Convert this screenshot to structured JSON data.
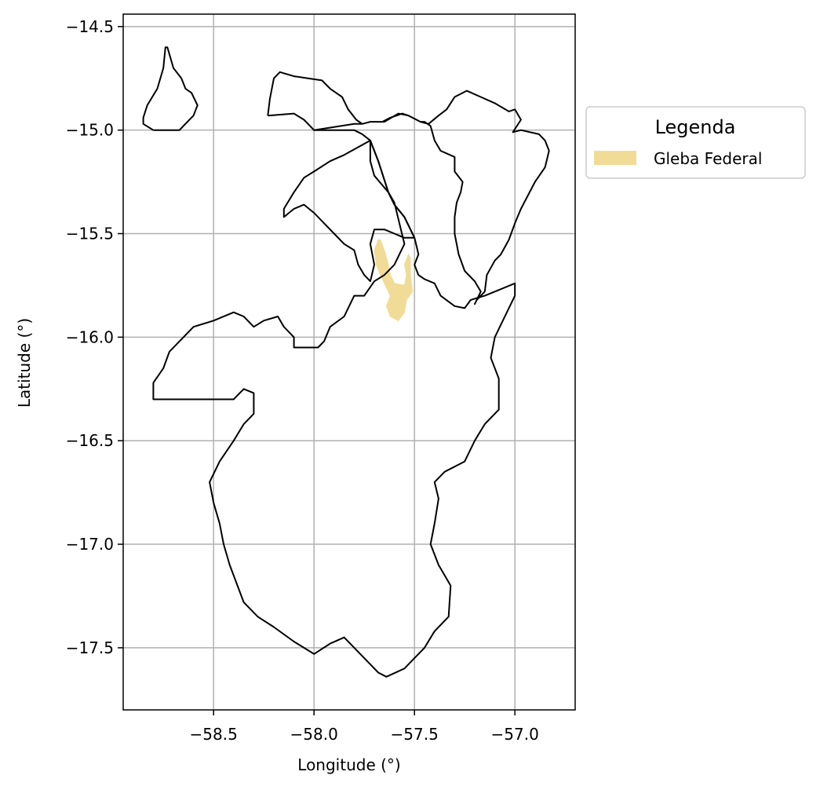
{
  "chart_data": {
    "type": "map",
    "xlabel": "Longitude (°)",
    "ylabel": "Latitude (°)",
    "xlim": [
      -58.95,
      -56.7
    ],
    "ylim": [
      -17.8,
      -14.44
    ],
    "grid": true,
    "x_ticks": [
      {
        "value": -58.5,
        "label": "−58.5"
      },
      {
        "value": -58.0,
        "label": "−58.0"
      },
      {
        "value": -57.5,
        "label": "−57.5"
      },
      {
        "value": -57.0,
        "label": "−57.0"
      }
    ],
    "y_ticks": [
      {
        "value": -14.5,
        "label": "−14.5"
      },
      {
        "value": -15.0,
        "label": "−15.0"
      },
      {
        "value": -15.5,
        "label": "−15.5"
      },
      {
        "value": -16.0,
        "label": "−16.0"
      },
      {
        "value": -16.5,
        "label": "−16.5"
      },
      {
        "value": -17.0,
        "label": "−17.0"
      },
      {
        "value": -17.5,
        "label": "−17.5"
      }
    ],
    "legend": {
      "title": "Legenda",
      "placement": "outside-right",
      "entries": [
        {
          "label": "Gleba Federal",
          "color": "#f0dc96"
        }
      ]
    },
    "boundary_color": "#000000",
    "boundaries": [
      [
        [
          -58.8,
          -15.0
        ],
        [
          -58.67,
          -15.0
        ],
        [
          -58.63,
          -14.96
        ],
        [
          -58.6,
          -14.93
        ],
        [
          -58.58,
          -14.88
        ],
        [
          -58.61,
          -14.82
        ],
        [
          -58.64,
          -14.8
        ],
        [
          -58.66,
          -14.75
        ],
        [
          -58.7,
          -14.7
        ],
        [
          -58.73,
          -14.6
        ],
        [
          -58.74,
          -14.6
        ],
        [
          -58.75,
          -14.7
        ],
        [
          -58.78,
          -14.8
        ],
        [
          -58.83,
          -14.88
        ],
        [
          -58.85,
          -14.94
        ],
        [
          -58.85,
          -14.97
        ],
        [
          -58.8,
          -15.0
        ]
      ],
      [
        [
          -58.23,
          -14.93
        ],
        [
          -58.22,
          -14.85
        ],
        [
          -58.2,
          -14.75
        ],
        [
          -58.17,
          -14.72
        ],
        [
          -58.1,
          -14.74
        ],
        [
          -58.03,
          -14.75
        ],
        [
          -57.96,
          -14.76
        ],
        [
          -57.92,
          -14.8
        ],
        [
          -57.86,
          -14.84
        ],
        [
          -57.83,
          -14.9
        ],
        [
          -57.79,
          -14.95
        ],
        [
          -57.76,
          -14.97
        ],
        [
          -57.72,
          -14.96
        ],
        [
          -57.66,
          -14.96
        ],
        [
          -57.62,
          -14.94
        ],
        [
          -57.56,
          -14.92
        ],
        [
          -57.53,
          -14.93
        ],
        [
          -57.47,
          -14.96
        ],
        [
          -57.43,
          -14.97
        ],
        [
          -57.38,
          -14.93
        ],
        [
          -57.34,
          -14.9
        ],
        [
          -57.3,
          -14.84
        ],
        [
          -57.24,
          -14.81
        ],
        [
          -57.17,
          -14.84
        ],
        [
          -57.1,
          -14.87
        ],
        [
          -57.03,
          -14.91
        ],
        [
          -57.0,
          -14.9
        ],
        [
          -56.97,
          -14.95
        ],
        [
          -57.01,
          -15.01
        ],
        [
          -56.97,
          -15.0
        ],
        [
          -56.88,
          -15.02
        ],
        [
          -56.85,
          -15.05
        ],
        [
          -56.83,
          -15.1
        ],
        [
          -56.85,
          -15.18
        ],
        [
          -56.9,
          -15.25
        ],
        [
          -56.97,
          -15.38
        ],
        [
          -57.0,
          -15.45
        ],
        [
          -57.03,
          -15.53
        ],
        [
          -57.07,
          -15.6
        ],
        [
          -57.1,
          -15.63
        ],
        [
          -57.14,
          -15.7
        ],
        [
          -57.15,
          -15.78
        ],
        [
          -57.19,
          -15.82
        ],
        [
          -57.2,
          -15.84
        ],
        [
          -57.17,
          -15.78
        ],
        [
          -57.2,
          -15.73
        ],
        [
          -57.25,
          -15.68
        ],
        [
          -57.28,
          -15.6
        ],
        [
          -57.3,
          -15.5
        ],
        [
          -57.3,
          -15.42
        ],
        [
          -57.29,
          -15.35
        ],
        [
          -57.27,
          -15.3
        ],
        [
          -57.26,
          -15.25
        ],
        [
          -57.3,
          -15.2
        ],
        [
          -57.3,
          -15.13
        ],
        [
          -57.37,
          -15.1
        ],
        [
          -57.4,
          -15.05
        ],
        [
          -57.42,
          -14.98
        ],
        [
          -57.45,
          -14.96
        ],
        [
          -57.47,
          -14.96
        ],
        [
          -57.53,
          -14.93
        ],
        [
          -57.58,
          -14.92
        ],
        [
          -57.65,
          -14.96
        ],
        [
          -57.72,
          -14.96
        ],
        [
          -57.76,
          -14.97
        ],
        [
          -57.8,
          -14.97
        ],
        [
          -58.0,
          -15.0
        ],
        [
          -58.05,
          -14.95
        ],
        [
          -58.1,
          -14.92
        ],
        [
          -58.23,
          -14.93
        ]
      ],
      [
        [
          -57.72,
          -15.05
        ],
        [
          -57.68,
          -15.15
        ],
        [
          -57.65,
          -15.24
        ],
        [
          -57.63,
          -15.3
        ],
        [
          -57.6,
          -15.36
        ],
        [
          -57.55,
          -15.42
        ],
        [
          -57.52,
          -15.48
        ],
        [
          -57.5,
          -15.52
        ],
        [
          -57.49,
          -15.56
        ],
        [
          -57.48,
          -15.6
        ],
        [
          -57.5,
          -15.65
        ],
        [
          -57.48,
          -15.7
        ],
        [
          -57.45,
          -15.72
        ],
        [
          -57.4,
          -15.74
        ],
        [
          -57.37,
          -15.8
        ],
        [
          -57.3,
          -15.85
        ],
        [
          -57.25,
          -15.86
        ],
        [
          -57.22,
          -15.82
        ],
        [
          -57.15,
          -15.8
        ],
        [
          -57.0,
          -15.74
        ],
        [
          -57.0,
          -15.8
        ],
        [
          -57.05,
          -15.9
        ],
        [
          -57.1,
          -16.0
        ],
        [
          -57.12,
          -16.1
        ],
        [
          -57.08,
          -16.2
        ],
        [
          -57.08,
          -16.35
        ],
        [
          -57.15,
          -16.42
        ],
        [
          -57.2,
          -16.5
        ],
        [
          -57.25,
          -16.6
        ],
        [
          -57.35,
          -16.65
        ],
        [
          -57.4,
          -16.7
        ],
        [
          -57.38,
          -16.78
        ],
        [
          -57.4,
          -16.9
        ],
        [
          -57.42,
          -17.0
        ],
        [
          -57.38,
          -17.1
        ],
        [
          -57.32,
          -17.2
        ],
        [
          -57.33,
          -17.35
        ],
        [
          -57.4,
          -17.42
        ],
        [
          -57.45,
          -17.5
        ],
        [
          -57.5,
          -17.55
        ],
        [
          -57.55,
          -17.6
        ],
        [
          -57.64,
          -17.64
        ],
        [
          -57.68,
          -17.62
        ],
        [
          -57.74,
          -17.56
        ],
        [
          -57.85,
          -17.45
        ],
        [
          -57.92,
          -17.48
        ],
        [
          -58.0,
          -17.53
        ],
        [
          -58.05,
          -17.5
        ],
        [
          -58.1,
          -17.47
        ],
        [
          -58.2,
          -17.4
        ],
        [
          -58.28,
          -17.35
        ],
        [
          -58.35,
          -17.28
        ],
        [
          -58.42,
          -17.1
        ],
        [
          -58.45,
          -17.0
        ],
        [
          -58.47,
          -16.9
        ],
        [
          -58.5,
          -16.8
        ],
        [
          -58.52,
          -16.7
        ],
        [
          -58.47,
          -16.6
        ],
        [
          -58.4,
          -16.5
        ],
        [
          -58.35,
          -16.42
        ],
        [
          -58.3,
          -16.37
        ],
        [
          -58.3,
          -16.27
        ],
        [
          -58.35,
          -16.25
        ],
        [
          -58.4,
          -16.3
        ],
        [
          -58.8,
          -16.3
        ],
        [
          -58.8,
          -16.22
        ],
        [
          -58.75,
          -16.15
        ],
        [
          -58.72,
          -16.07
        ],
        [
          -58.65,
          -16.0
        ],
        [
          -58.6,
          -15.95
        ],
        [
          -58.5,
          -15.92
        ],
        [
          -58.4,
          -15.88
        ],
        [
          -58.35,
          -15.9
        ],
        [
          -58.3,
          -15.95
        ],
        [
          -58.25,
          -15.92
        ],
        [
          -58.18,
          -15.9
        ],
        [
          -58.15,
          -15.95
        ],
        [
          -58.1,
          -16.0
        ],
        [
          -58.1,
          -16.05
        ],
        [
          -58.03,
          -16.05
        ],
        [
          -57.98,
          -16.05
        ],
        [
          -57.95,
          -16.02
        ],
        [
          -57.92,
          -15.95
        ],
        [
          -57.85,
          -15.9
        ],
        [
          -57.8,
          -15.8
        ],
        [
          -57.75,
          -15.8
        ],
        [
          -57.7,
          -15.73
        ],
        [
          -57.65,
          -15.7
        ],
        [
          -57.6,
          -15.65
        ],
        [
          -57.55,
          -15.55
        ],
        [
          -57.6,
          -15.35
        ],
        [
          -57.63,
          -15.3
        ],
        [
          -57.7,
          -15.22
        ],
        [
          -57.72,
          -15.15
        ],
        [
          -57.72,
          -15.05
        ]
      ],
      [
        [
          -57.5,
          -15.52
        ],
        [
          -57.52,
          -15.48
        ],
        [
          -57.55,
          -15.42
        ],
        [
          -57.6,
          -15.36
        ],
        [
          -57.63,
          -15.3
        ],
        [
          -57.65,
          -15.24
        ],
        [
          -57.68,
          -15.15
        ],
        [
          -57.72,
          -15.05
        ],
        [
          -57.76,
          -15.02
        ],
        [
          -57.8,
          -15.0
        ],
        [
          -58.0,
          -15.0
        ]
      ],
      [
        [
          -57.72,
          -15.05
        ],
        [
          -57.85,
          -15.12
        ],
        [
          -57.92,
          -15.15
        ],
        [
          -58.0,
          -15.2
        ],
        [
          -58.05,
          -15.23
        ],
        [
          -58.1,
          -15.3
        ],
        [
          -58.15,
          -15.38
        ],
        [
          -58.15,
          -15.42
        ],
        [
          -58.1,
          -15.38
        ],
        [
          -58.05,
          -15.36
        ],
        [
          -58.0,
          -15.4
        ],
        [
          -57.95,
          -15.45
        ],
        [
          -57.9,
          -15.5
        ],
        [
          -57.85,
          -15.55
        ],
        [
          -57.8,
          -15.58
        ],
        [
          -57.78,
          -15.65
        ],
        [
          -57.75,
          -15.7
        ],
        [
          -57.72,
          -15.73
        ],
        [
          -57.7,
          -15.65
        ],
        [
          -57.72,
          -15.55
        ],
        [
          -57.7,
          -15.48
        ],
        [
          -57.65,
          -15.48
        ],
        [
          -57.6,
          -15.5
        ],
        [
          -57.55,
          -15.52
        ],
        [
          -57.5,
          -15.52
        ]
      ]
    ],
    "glebas": [
      [
        [
          -57.67,
          -15.53
        ],
        [
          -57.65,
          -15.58
        ],
        [
          -57.63,
          -15.65
        ],
        [
          -57.62,
          -15.7
        ],
        [
          -57.6,
          -15.74
        ],
        [
          -57.55,
          -15.75
        ],
        [
          -57.54,
          -15.7
        ],
        [
          -57.55,
          -15.65
        ],
        [
          -57.53,
          -15.6
        ],
        [
          -57.52,
          -15.62
        ],
        [
          -57.52,
          -15.7
        ],
        [
          -57.51,
          -15.78
        ],
        [
          -57.54,
          -15.82
        ],
        [
          -57.55,
          -15.88
        ],
        [
          -57.58,
          -15.92
        ],
        [
          -57.62,
          -15.9
        ],
        [
          -57.64,
          -15.85
        ],
        [
          -57.62,
          -15.8
        ],
        [
          -57.64,
          -15.76
        ],
        [
          -57.67,
          -15.7
        ],
        [
          -57.69,
          -15.65
        ],
        [
          -57.7,
          -15.58
        ],
        [
          -57.68,
          -15.53
        ],
        [
          -57.67,
          -15.53
        ]
      ]
    ]
  }
}
